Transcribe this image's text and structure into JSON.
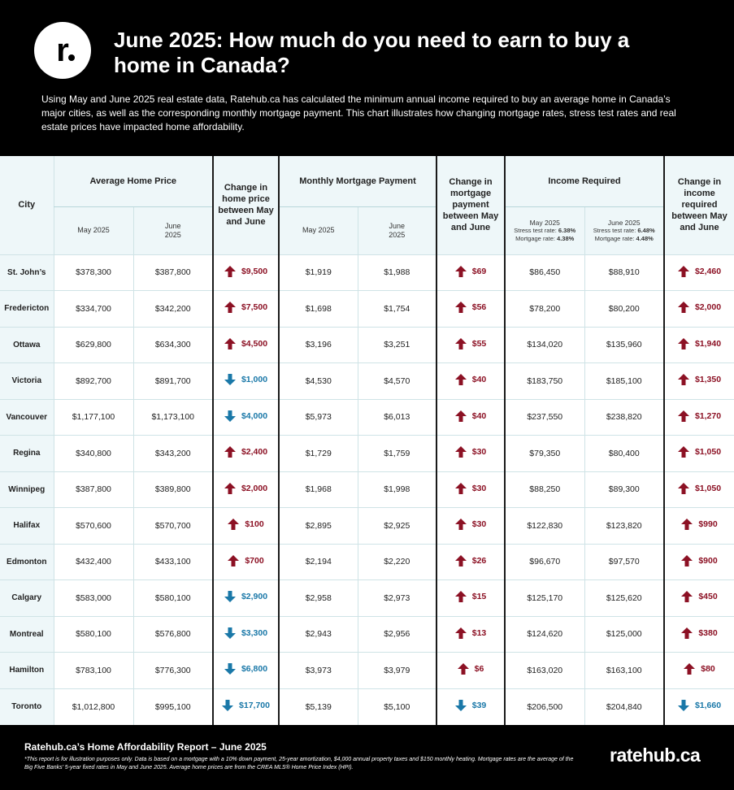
{
  "header": {
    "logo_letter": "r",
    "title": "June 2025: How much do you need to earn to buy a home in Canada?",
    "intro": "Using May and June 2025 real estate data, Ratehub.ca has calculated the minimum annual income required to buy an average home in Canada’s major cities, as well as the corresponding monthly mortgage payment. This chart illustrates how changing mortgage rates, stress test rates and real estate prices have impacted home affordability."
  },
  "columns": {
    "city": "City",
    "avg_price": "Average Home Price",
    "chg_price": "Change in home price between May and June",
    "payment": "Monthly Mortgage Payment",
    "chg_payment": "Change in mortgage payment between May and June",
    "income": "Income Required",
    "chg_income": "Change in income required between May and June",
    "may": "May 2025",
    "june": "June 2025",
    "inc_may_line1": "May 2025",
    "inc_may_stress_label": "Stress test rate:",
    "inc_may_stress": "6.38%",
    "inc_may_rate_label": "Mortgage rate:",
    "inc_may_rate": "4.38%",
    "inc_jun_line1": "June 2025",
    "inc_jun_stress_label": "Stress test rate:",
    "inc_jun_stress": "6.48%",
    "inc_jun_rate_label": "Mortgage rate:",
    "inc_jun_rate": "4.48%"
  },
  "colors": {
    "up": "#8c1124",
    "down": "#1a78a8",
    "header_bg": "#eef7f9"
  },
  "chart_data": {
    "type": "table",
    "rows": [
      {
        "city": "St. John’s",
        "price_may": "$378,300",
        "price_jun": "$387,800",
        "price_chg": "$9,500",
        "price_dir": "up",
        "pay_may": "$1,919",
        "pay_jun": "$1,988",
        "pay_chg": "$69",
        "pay_dir": "up",
        "inc_may": "$86,450",
        "inc_jun": "$88,910",
        "inc_chg": "$2,460",
        "inc_dir": "up"
      },
      {
        "city": "Fredericton",
        "price_may": "$334,700",
        "price_jun": "$342,200",
        "price_chg": "$7,500",
        "price_dir": "up",
        "pay_may": "$1,698",
        "pay_jun": "$1,754",
        "pay_chg": "$56",
        "pay_dir": "up",
        "inc_may": "$78,200",
        "inc_jun": "$80,200",
        "inc_chg": "$2,000",
        "inc_dir": "up"
      },
      {
        "city": "Ottawa",
        "price_may": "$629,800",
        "price_jun": "$634,300",
        "price_chg": "$4,500",
        "price_dir": "up",
        "pay_may": "$3,196",
        "pay_jun": "$3,251",
        "pay_chg": "$55",
        "pay_dir": "up",
        "inc_may": "$134,020",
        "inc_jun": "$135,960",
        "inc_chg": "$1,940",
        "inc_dir": "up"
      },
      {
        "city": "Victoria",
        "price_may": "$892,700",
        "price_jun": "$891,700",
        "price_chg": "$1,000",
        "price_dir": "down",
        "pay_may": "$4,530",
        "pay_jun": "$4,570",
        "pay_chg": "$40",
        "pay_dir": "up",
        "inc_may": "$183,750",
        "inc_jun": "$185,100",
        "inc_chg": "$1,350",
        "inc_dir": "up"
      },
      {
        "city": "Vancouver",
        "price_may": "$1,177,100",
        "price_jun": "$1,173,100",
        "price_chg": "$4,000",
        "price_dir": "down",
        "pay_may": "$5,973",
        "pay_jun": "$6,013",
        "pay_chg": "$40",
        "pay_dir": "up",
        "inc_may": "$237,550",
        "inc_jun": "$238,820",
        "inc_chg": "$1,270",
        "inc_dir": "up"
      },
      {
        "city": "Regina",
        "price_may": "$340,800",
        "price_jun": "$343,200",
        "price_chg": "$2,400",
        "price_dir": "up",
        "pay_may": "$1,729",
        "pay_jun": "$1,759",
        "pay_chg": "$30",
        "pay_dir": "up",
        "inc_may": "$79,350",
        "inc_jun": "$80,400",
        "inc_chg": "$1,050",
        "inc_dir": "up"
      },
      {
        "city": "Winnipeg",
        "price_may": "$387,800",
        "price_jun": "$389,800",
        "price_chg": "$2,000",
        "price_dir": "up",
        "pay_may": "$1,968",
        "pay_jun": "$1,998",
        "pay_chg": "$30",
        "pay_dir": "up",
        "inc_may": "$88,250",
        "inc_jun": "$89,300",
        "inc_chg": "$1,050",
        "inc_dir": "up"
      },
      {
        "city": "Halifax",
        "price_may": "$570,600",
        "price_jun": "$570,700",
        "price_chg": "$100",
        "price_dir": "up",
        "pay_may": "$2,895",
        "pay_jun": "$2,925",
        "pay_chg": "$30",
        "pay_dir": "up",
        "inc_may": "$122,830",
        "inc_jun": "$123,820",
        "inc_chg": "$990",
        "inc_dir": "up"
      },
      {
        "city": "Edmonton",
        "price_may": "$432,400",
        "price_jun": "$433,100",
        "price_chg": "$700",
        "price_dir": "up",
        "pay_may": "$2,194",
        "pay_jun": "$2,220",
        "pay_chg": "$26",
        "pay_dir": "up",
        "inc_may": "$96,670",
        "inc_jun": "$97,570",
        "inc_chg": "$900",
        "inc_dir": "up"
      },
      {
        "city": "Calgary",
        "price_may": "$583,000",
        "price_jun": "$580,100",
        "price_chg": "$2,900",
        "price_dir": "down",
        "pay_may": "$2,958",
        "pay_jun": "$2,973",
        "pay_chg": "$15",
        "pay_dir": "up",
        "inc_may": "$125,170",
        "inc_jun": "$125,620",
        "inc_chg": "$450",
        "inc_dir": "up"
      },
      {
        "city": "Montreal",
        "price_may": "$580,100",
        "price_jun": "$576,800",
        "price_chg": "$3,300",
        "price_dir": "down",
        "pay_may": "$2,943",
        "pay_jun": "$2,956",
        "pay_chg": "$13",
        "pay_dir": "up",
        "inc_may": "$124,620",
        "inc_jun": "$125,000",
        "inc_chg": "$380",
        "inc_dir": "up"
      },
      {
        "city": "Hamilton",
        "price_may": "$783,100",
        "price_jun": "$776,300",
        "price_chg": "$6,800",
        "price_dir": "down",
        "pay_may": "$3,973",
        "pay_jun": "$3,979",
        "pay_chg": "$6",
        "pay_dir": "up",
        "inc_may": "$163,020",
        "inc_jun": "$163,100",
        "inc_chg": "$80",
        "inc_dir": "up"
      },
      {
        "city": "Toronto",
        "price_may": "$1,012,800",
        "price_jun": "$995,100",
        "price_chg": "$17,700",
        "price_dir": "down",
        "pay_may": "$5,139",
        "pay_jun": "$5,100",
        "pay_chg": "$39",
        "pay_dir": "down",
        "inc_may": "$206,500",
        "inc_jun": "$204,840",
        "inc_chg": "$1,660",
        "inc_dir": "down"
      }
    ]
  },
  "footer": {
    "title": "Ratehub.ca’s Home Affordability Report – June 2025",
    "note": "*This report is for illustration purposes only. Data is based on a mortgage with a 10% down payment, 25-year amortization, $4,000 annual property taxes and $150 monthly heating. Mortgage rates are the average of the Big Five Banks’ 5-year fixed rates in May and June 2025. Average home prices are from the CREA MLS® Home Price Index (HPI).",
    "brand": "ratehub.ca"
  }
}
